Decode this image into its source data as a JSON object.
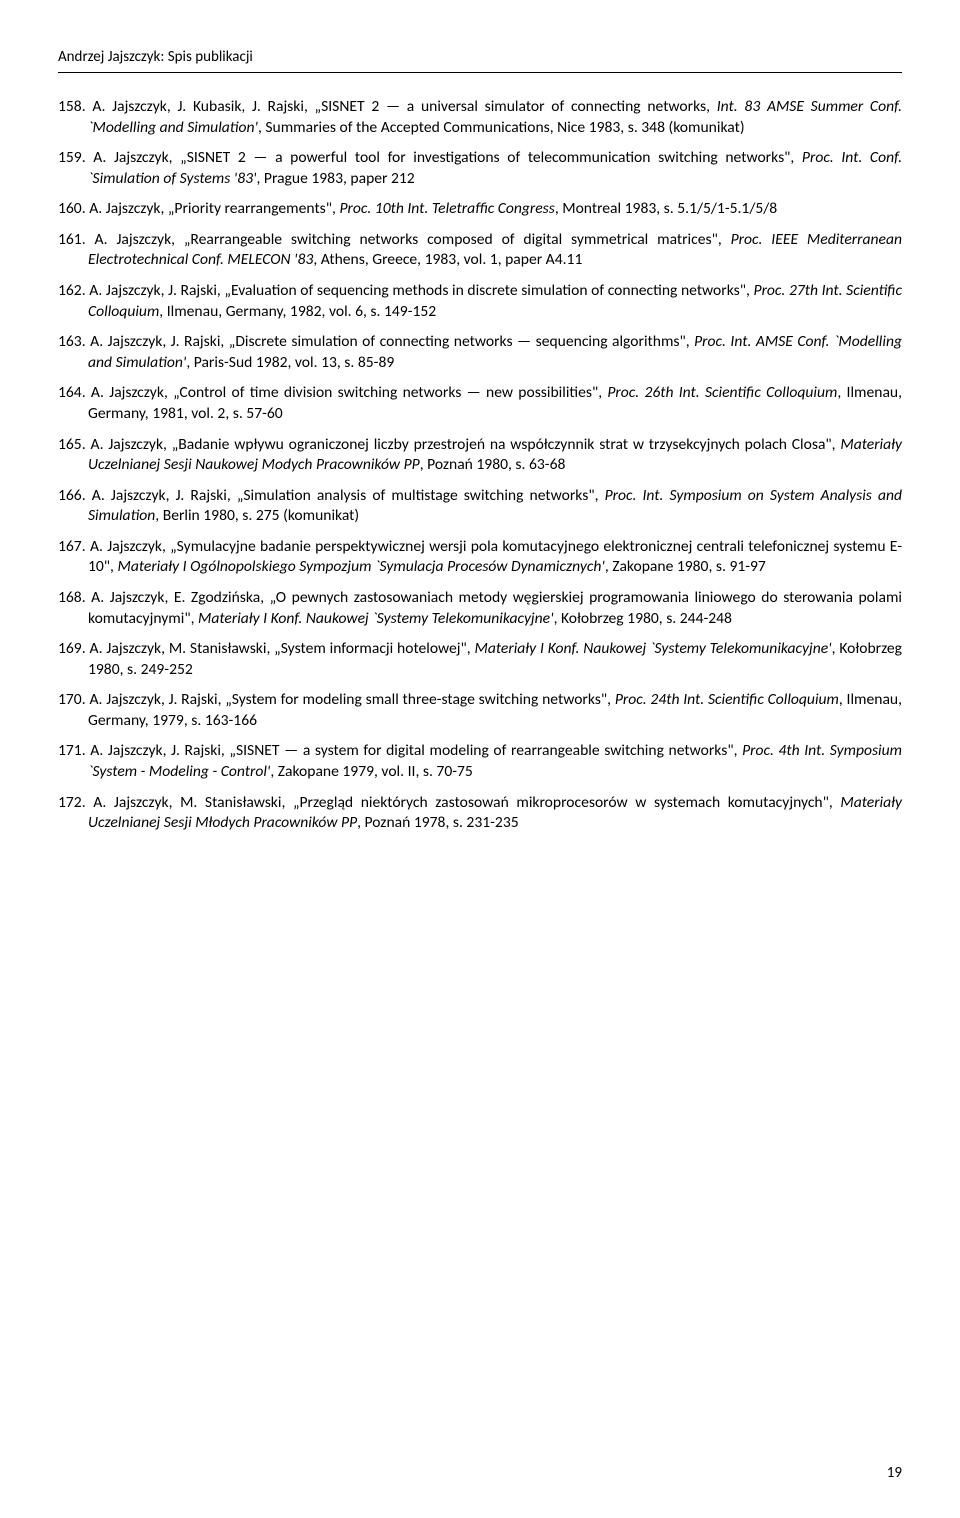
{
  "header": "Andrzej Jajszczyk: Spis publikacji",
  "page_number": "19",
  "entries": [
    {
      "num": "158.",
      "pre": "A. Jajszczyk, J. Kubasik, J. Rajski, „SISNET 2 — a universal simulator of connecting networks, ",
      "it1": "Int. 83 AMSE Summer Conf. `Modelling and Simulation'",
      "post": ", Summaries of the Accepted Communications, Nice 1983, s. 348 (komunikat)"
    },
    {
      "num": "159.",
      "pre": "A. Jajszczyk, „SISNET 2 — a powerful tool for investigations of telecommunication switching networks\", ",
      "it1": "Proc. Int. Conf. `Simulation of Systems '83'",
      "post": ", Prague 1983, paper 212"
    },
    {
      "num": "160.",
      "pre": "A. Jajszczyk, „Priority rearrangements\", ",
      "it1": "Proc. 10th Int. Teletraffic Congress",
      "post": ", Montreal 1983, s. 5.1/5/1-5.1/5/8"
    },
    {
      "num": "161.",
      "pre": "A. Jajszczyk, „Rearrangeable switching networks composed of digital symmetrical matrices\", ",
      "it1": "Proc. IEEE Mediterranean Electrotechnical Conf. MELECON '83",
      "post": ", Athens, Greece, 1983, vol. 1, paper A4.11"
    },
    {
      "num": "162.",
      "pre": "A. Jajszczyk, J. Rajski, „Evaluation of sequencing methods in discrete simulation of connecting networks\", ",
      "it1": "Proc. 27th Int. Scientific Colloquium",
      "post": ", Ilmenau, Germany, 1982, vol. 6, s. 149-152"
    },
    {
      "num": "163.",
      "pre": "A. Jajszczyk, J. Rajski, „Discrete simulation of connecting networks — sequencing algorithms\", ",
      "it1": "Proc. Int. AMSE Conf. `Modelling and Simulation'",
      "post": ", Paris-Sud 1982, vol. 13, s. 85-89"
    },
    {
      "num": "164.",
      "pre": "A. Jajszczyk, „Control of time division switching networks — new possibilities\", ",
      "it1": "Proc. 26th Int. Scientific Colloquium",
      "post": ", Ilmenau, Germany, 1981, vol. 2, s. 57-60"
    },
    {
      "num": "165.",
      "pre": "A. Jajszczyk, „Badanie wpływu ograniczonej liczby przestrojeń na współczynnik strat w trzysekcyjnych polach Closa\", ",
      "it1": "Materiały Uczelnianej Sesji Naukowej Modych Pracowników PP",
      "post": ", Poznań 1980, s. 63-68"
    },
    {
      "num": "166.",
      "pre": "A. Jajszczyk, J. Rajski, „Simulation analysis of multistage switching networks\", ",
      "it1": "Proc. Int. Symposium on System Analysis and Simulation",
      "post": ", Berlin 1980, s. 275 (komunikat)"
    },
    {
      "num": "167.",
      "pre": "A. Jajszczyk, „Symulacyjne badanie perspektywicznej wersji pola komutacyjnego elektronicznej centrali telefonicznej systemu E-10\", ",
      "it1": "Materiały I Ogólnopolskiego Sympozjum `Symulacja Procesów Dynamicznych'",
      "post": ", Zakopane 1980, s. 91-97"
    },
    {
      "num": "168.",
      "pre": "A. Jajszczyk, E. Zgodzińska, „O pewnych zastosowaniach metody węgierskiej programowania liniowego do sterowania polami komutacyjnymi\", ",
      "it1": "Materiały I Konf. Naukowej `Systemy Telekomunikacyjne'",
      "post": ", Kołobrzeg 1980, s. 244-248"
    },
    {
      "num": "169.",
      "pre": "A. Jajszczyk, M. Stanisławski, „System informacji hotelowej\", ",
      "it1": "Materiały I Konf. Naukowej `Systemy Telekomunikacyjne'",
      "post": ", Kołobrzeg 1980, s. 249-252"
    },
    {
      "num": "170.",
      "pre": "A. Jajszczyk, J. Rajski, „System for modeling small three-stage switching networks\", ",
      "it1": "Proc. 24th Int. Scientific Colloquium",
      "post": ", Ilmenau, Germany, 1979, s. 163-166"
    },
    {
      "num": "171.",
      "pre": "A. Jajszczyk, J. Rajski, „SISNET — a system for digital modeling of rearrangeable switching networks\", ",
      "it1": "Proc. 4th Int. Symposium `System - Modeling - Control'",
      "post": ", Zakopane 1979, vol. II, s. 70-75"
    },
    {
      "num": "172.",
      "pre": "A. Jajszczyk, M. Stanisławski, „Przegląd niektórych zastosowań mikroprocesorów w systemach komutacyjnych\", ",
      "it1": "Materiały Uczelnianej Sesji Młodych Pracowników PP",
      "post": ", Poznań 1978, s. 231-235"
    }
  ]
}
